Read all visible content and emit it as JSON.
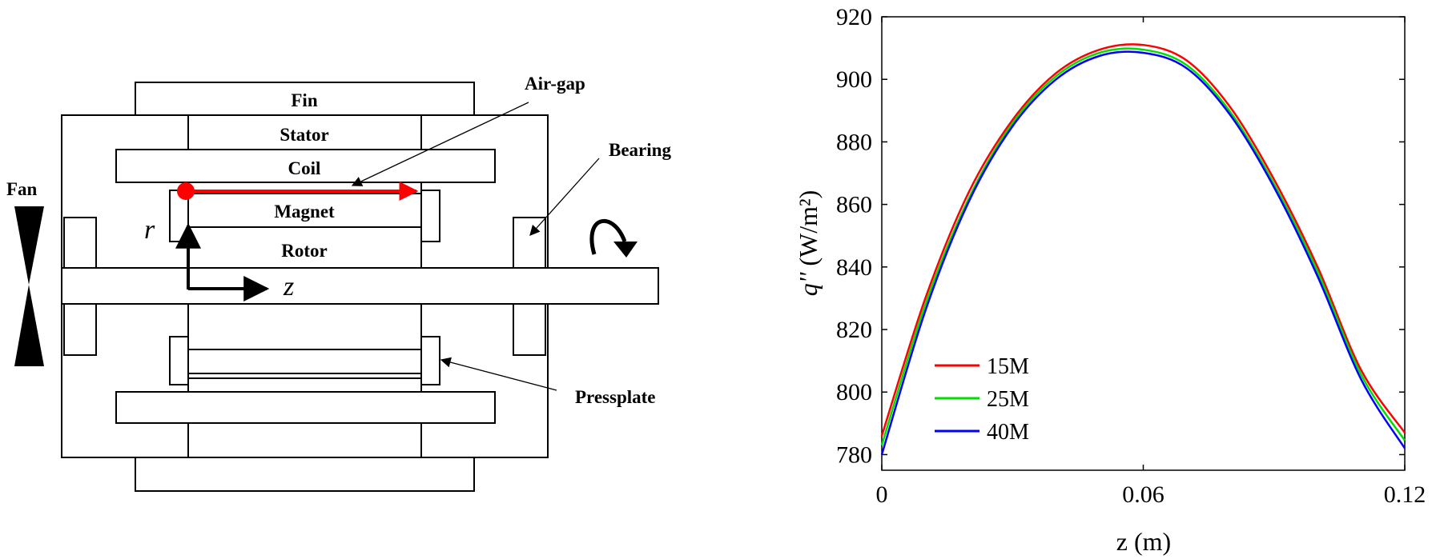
{
  "diagram": {
    "labels": {
      "fin": "Fin",
      "stator": "Stator",
      "coil": "Coil",
      "magnet": "Magnet",
      "rotor": "Rotor",
      "air_gap": "Air-gap",
      "bearing": "Bearing",
      "fan": "Fan",
      "pressplate": "Pressplate",
      "axis_r": "r",
      "axis_z": "z"
    },
    "colors": {
      "air_gap_line": "#ff0000",
      "outline": "#000000"
    }
  },
  "chart_data": {
    "type": "line",
    "xlabel": "z (m)",
    "ylabel_base": "q''",
    "ylabel_units": "(W/m²)",
    "xlim": [
      0,
      0.12
    ],
    "ylim": [
      775,
      920
    ],
    "xticks": [
      "0",
      "0.06",
      "0.12"
    ],
    "yticks": [
      "780",
      "800",
      "820",
      "840",
      "860",
      "880",
      "900",
      "920"
    ],
    "x": [
      0,
      0.01,
      0.02,
      0.03,
      0.04,
      0.05,
      0.06,
      0.07,
      0.08,
      0.09,
      0.1,
      0.11,
      0.12
    ],
    "series": [
      {
        "name": "15M",
        "color": "#ff0000",
        "values": [
          786,
          830,
          864,
          887,
          902,
          909.5,
          911,
          906,
          891,
          868,
          840,
          807,
          787
        ]
      },
      {
        "name": "25M",
        "color": "#00dd00",
        "values": [
          783,
          828,
          862,
          886,
          901,
          908.5,
          909.5,
          904.5,
          889.5,
          866.5,
          838.5,
          805.5,
          784.5
        ]
      },
      {
        "name": "40M",
        "color": "#0000ff",
        "values": [
          780,
          826,
          861,
          885,
          900,
          907.5,
          908.5,
          903.5,
          888.5,
          865.5,
          837,
          804,
          782
        ]
      }
    ],
    "legend_position": "bottom-left"
  }
}
